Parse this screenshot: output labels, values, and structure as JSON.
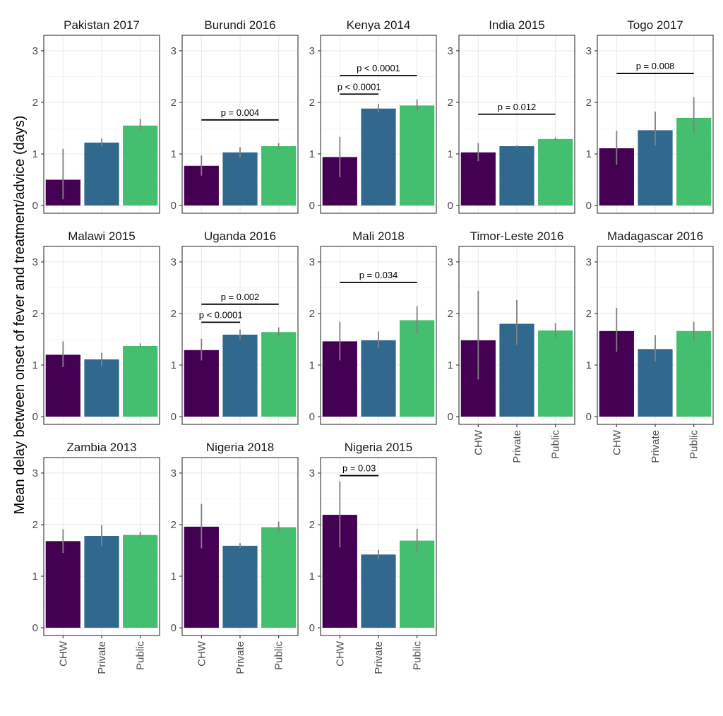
{
  "chart_data": {
    "type": "bar",
    "ylabel": "Mean delay between onset of fever and treatment/advice (days)",
    "xlabel": "",
    "categories": [
      "CHW",
      "Private",
      "Public"
    ],
    "ylim": [
      -0.15,
      3.3
    ],
    "yticks": [
      "0",
      "1",
      "2",
      "3"
    ],
    "colors": {
      "CHW": "#440154",
      "Private": "#31688e",
      "Public": "#44bf70",
      "errorbar": "#808080",
      "panel_border": "#333333",
      "grid_major": "#ebebeb",
      "grid_minor": "#f5f5f5"
    },
    "panels": [
      {
        "title": "Pakistan 2017",
        "values": [
          0.5,
          1.22,
          1.55
        ],
        "error_low": [
          0.12,
          1.15,
          1.44
        ],
        "error_high": [
          1.1,
          1.3,
          1.68
        ],
        "brackets": []
      },
      {
        "title": "Burundi 2016",
        "values": [
          0.77,
          1.03,
          1.15
        ],
        "error_low": [
          0.58,
          0.93,
          1.09
        ],
        "error_high": [
          0.97,
          1.13,
          1.21
        ],
        "brackets": [
          {
            "from": "CHW",
            "to": "Public",
            "label": "p = 0.004",
            "y": 1.66
          }
        ]
      },
      {
        "title": "Kenya 2014",
        "values": [
          0.94,
          1.88,
          1.94
        ],
        "error_low": [
          0.55,
          1.8,
          1.83
        ],
        "error_high": [
          1.33,
          1.97,
          2.06
        ],
        "brackets": [
          {
            "from": "CHW",
            "to": "Private",
            "label": "p < 0.0001",
            "y": 2.16
          },
          {
            "from": "CHW",
            "to": "Public",
            "label": "p < 0.0001",
            "y": 2.52
          }
        ]
      },
      {
        "title": "India 2015",
        "values": [
          1.03,
          1.15,
          1.29
        ],
        "error_low": [
          0.86,
          1.13,
          1.26
        ],
        "error_high": [
          1.21,
          1.17,
          1.32
        ],
        "brackets": [
          {
            "from": "CHW",
            "to": "Public",
            "label": "p = 0.012",
            "y": 1.77
          }
        ]
      },
      {
        "title": "Togo 2017",
        "values": [
          1.11,
          1.46,
          1.7
        ],
        "error_low": [
          0.79,
          1.16,
          1.41
        ],
        "error_high": [
          1.45,
          1.82,
          2.1
        ],
        "brackets": [
          {
            "from": "CHW",
            "to": "Public",
            "label": "p = 0.008",
            "y": 2.56
          }
        ]
      },
      {
        "title": "Malawi 2015",
        "values": [
          1.2,
          1.11,
          1.37
        ],
        "error_low": [
          0.96,
          0.98,
          1.33
        ],
        "error_high": [
          1.46,
          1.24,
          1.42
        ],
        "brackets": []
      },
      {
        "title": "Uganda 2016",
        "values": [
          1.29,
          1.59,
          1.64
        ],
        "error_low": [
          1.09,
          1.5,
          1.55
        ],
        "error_high": [
          1.51,
          1.69,
          1.73
        ],
        "brackets": [
          {
            "from": "CHW",
            "to": "Private",
            "label": "p < 0.0001",
            "y": 1.83
          },
          {
            "from": "CHW",
            "to": "Public",
            "label": "p = 0.002",
            "y": 2.18
          }
        ]
      },
      {
        "title": "Mali 2018",
        "values": [
          1.46,
          1.48,
          1.87
        ],
        "error_low": [
          1.09,
          1.33,
          1.6
        ],
        "error_high": [
          1.84,
          1.65,
          2.14
        ],
        "brackets": [
          {
            "from": "CHW",
            "to": "Public",
            "label": "p = 0.034",
            "y": 2.6
          }
        ]
      },
      {
        "title": "Timor-Leste 2016",
        "values": [
          1.48,
          1.8,
          1.67
        ],
        "error_low": [
          0.72,
          1.39,
          1.53
        ],
        "error_high": [
          2.44,
          2.26,
          1.81
        ],
        "brackets": []
      },
      {
        "title": "Madagascar 2016",
        "values": [
          1.66,
          1.31,
          1.66
        ],
        "error_low": [
          1.26,
          1.07,
          1.49
        ],
        "error_high": [
          2.11,
          1.58,
          1.84
        ],
        "brackets": []
      },
      {
        "title": "Zambia 2013",
        "values": [
          1.68,
          1.78,
          1.8
        ],
        "error_low": [
          1.45,
          1.58,
          1.75
        ],
        "error_high": [
          1.91,
          1.99,
          1.86
        ],
        "brackets": []
      },
      {
        "title": "Nigeria 2018",
        "values": [
          1.96,
          1.59,
          1.95
        ],
        "error_low": [
          1.54,
          1.55,
          1.85
        ],
        "error_high": [
          2.4,
          1.64,
          2.06
        ],
        "brackets": []
      },
      {
        "title": "Nigeria 2015",
        "values": [
          2.19,
          1.42,
          1.69
        ],
        "error_low": [
          1.56,
          1.34,
          1.47
        ],
        "error_high": [
          2.84,
          1.51,
          1.92
        ],
        "brackets": [
          {
            "from": "CHW",
            "to": "Private",
            "label": "p = 0.03",
            "y": 2.95
          }
        ]
      }
    ]
  }
}
